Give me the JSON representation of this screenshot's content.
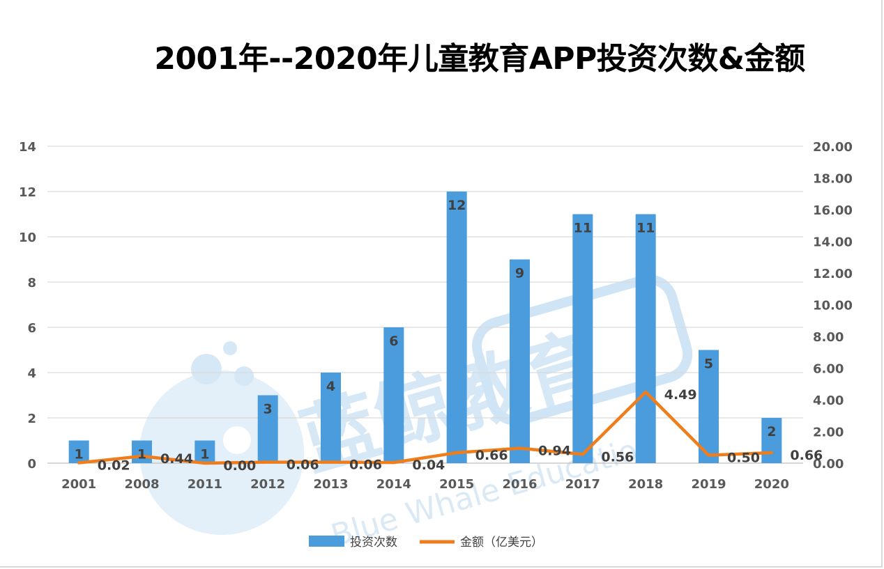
{
  "chart_data": {
    "type": "bar",
    "title": "2001年--2020年儿童教育APP投资次数&金额",
    "categories": [
      "2001",
      "2008",
      "2011",
      "2012",
      "2013",
      "2014",
      "2015",
      "2016",
      "2017",
      "2018",
      "2019",
      "2020"
    ],
    "series": [
      {
        "name": "投资次数",
        "type": "bar",
        "axis": "left",
        "color": "#4a9cdc",
        "values": [
          1,
          1,
          1,
          3,
          4,
          6,
          12,
          9,
          11,
          11,
          5,
          2
        ],
        "labels": [
          "1",
          "1",
          "1",
          "3",
          "4",
          "6",
          "12",
          "9",
          "11",
          "11",
          "5",
          "2"
        ]
      },
      {
        "name": "金额（亿美元）",
        "type": "line",
        "axis": "right",
        "color": "#f07d1c",
        "values": [
          0.02,
          0.44,
          0.0,
          0.06,
          0.06,
          0.04,
          0.66,
          0.94,
          0.56,
          4.49,
          0.5,
          0.66
        ],
        "labels": [
          "0.02",
          "0.44",
          "0.00",
          "0.06",
          "0.06",
          "0.04",
          "0.66",
          "0.94",
          "0.56",
          "4.49",
          "0.50",
          "0.66"
        ]
      }
    ],
    "y_left": {
      "min": 0,
      "max": 14,
      "ticks": [
        "0",
        "2",
        "4",
        "6",
        "8",
        "10",
        "12",
        "14"
      ]
    },
    "y_right": {
      "min": 0,
      "max": 20,
      "ticks": [
        "0.00",
        "2.00",
        "4.00",
        "6.00",
        "8.00",
        "10.00",
        "12.00",
        "14.00",
        "16.00",
        "18.00",
        "20.00"
      ]
    },
    "grid": true,
    "legend_position": "bottom"
  },
  "watermark": {
    "cn": "蓝鲸教育",
    "en": "Blue Whale Education",
    "color": "#cfe4f5"
  }
}
